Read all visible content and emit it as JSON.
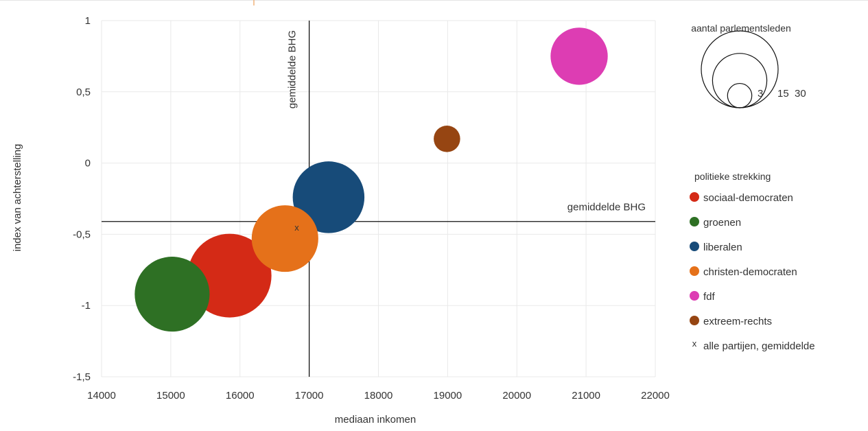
{
  "chart_data": {
    "type": "bubble",
    "xlabel": "mediaan inkomen",
    "ylabel": "index van achterstelling",
    "xlim": [
      14000,
      22000
    ],
    "ylim": [
      -1.5,
      1
    ],
    "x_ticks": [
      "14000",
      "15000",
      "16000",
      "17000",
      "18000",
      "19000",
      "20000",
      "21000",
      "22000"
    ],
    "y_ticks": [
      "1",
      "0,5",
      "0",
      "-0,5",
      "-1",
      "-1,5"
    ],
    "grid": true,
    "reference_lines": {
      "vertical": {
        "x": 17000,
        "label": "gemiddelde BHG"
      },
      "horizontal": {
        "y": -0.41,
        "label": "gemiddelde BHG"
      }
    },
    "size_legend": {
      "title": "aantal parlementsleden",
      "values": [
        3,
        15,
        30
      ],
      "labels": [
        "3",
        "15",
        "30"
      ]
    },
    "color_legend_title": "politieke strekking",
    "series": [
      {
        "name": "sociaal-democraten",
        "color": "#d42a16",
        "x": 15850,
        "y": -0.79,
        "size": 30
      },
      {
        "name": "groenen",
        "color": "#2e7024",
        "x": 15020,
        "y": -0.92,
        "size": 24
      },
      {
        "name": "liberalen",
        "color": "#174b79",
        "x": 17280,
        "y": -0.24,
        "size": 22
      },
      {
        "name": "christen-democraten",
        "color": "#e5711a",
        "x": 16650,
        "y": -0.53,
        "size": 19
      },
      {
        "name": "fdf",
        "color": "#dd3db3",
        "x": 20900,
        "y": 0.75,
        "size": 14
      },
      {
        "name": "extreem-rechts",
        "color": "#964512",
        "x": 18990,
        "y": 0.17,
        "size": 3
      }
    ],
    "average_marker": {
      "name": "alle partijen, gemiddelde",
      "symbol": "x",
      "x": 16820,
      "y": -0.45
    }
  }
}
